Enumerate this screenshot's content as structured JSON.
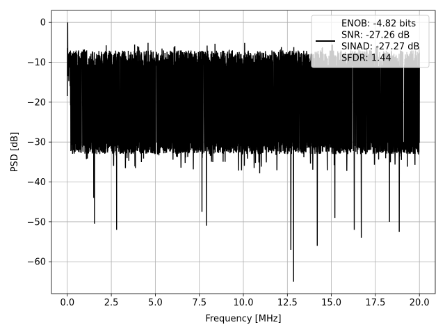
{
  "chart_data": {
    "type": "line",
    "title": "",
    "xlabel": "Frequency [MHz]",
    "ylabel": "PSD [dB]",
    "xlim": [
      -0.9,
      20.9
    ],
    "ylim": [
      -68,
      3
    ],
    "xticks": [
      0.0,
      2.5,
      5.0,
      7.5,
      10.0,
      12.5,
      15.0,
      17.5,
      20.0
    ],
    "xtick_labels": [
      "0.0",
      "2.5",
      "5.0",
      "7.5",
      "10.0",
      "12.5",
      "15.0",
      "17.5",
      "20.0"
    ],
    "yticks": [
      0,
      -10,
      -20,
      -30,
      -40,
      -50,
      -60
    ],
    "ytick_labels": [
      "0",
      "−10",
      "−20",
      "−30",
      "−40",
      "−50",
      "−60"
    ],
    "grid": true,
    "legend_position": "top-right",
    "line_color": "#000000",
    "series": [
      {
        "x_range": [
          0.0,
          20.0
        ],
        "envelope_upper_db": -7,
        "envelope_lower_db": -33,
        "peak_db": 0,
        "dips": [
          {
            "x": 1.55,
            "y": -50.5
          },
          {
            "x": 2.8,
            "y": -52.0
          },
          {
            "x": 1.5,
            "y": -44.0
          },
          {
            "x": 7.65,
            "y": -47.5
          },
          {
            "x": 7.9,
            "y": -51.0
          },
          {
            "x": 12.85,
            "y": -65.0
          },
          {
            "x": 12.7,
            "y": -57.0
          },
          {
            "x": 14.2,
            "y": -56.0
          },
          {
            "x": 15.2,
            "y": -49.0
          },
          {
            "x": 16.3,
            "y": -52.0
          },
          {
            "x": 16.7,
            "y": -54.0
          },
          {
            "x": 18.3,
            "y": -50.0
          },
          {
            "x": 18.85,
            "y": -52.5
          }
        ]
      }
    ],
    "legend": {
      "lines": [
        "ENOB: -4.82 bits",
        "SNR: -27.26 dB",
        "SINAD: -27.27 dB",
        "SFDR: 1.44"
      ]
    }
  }
}
